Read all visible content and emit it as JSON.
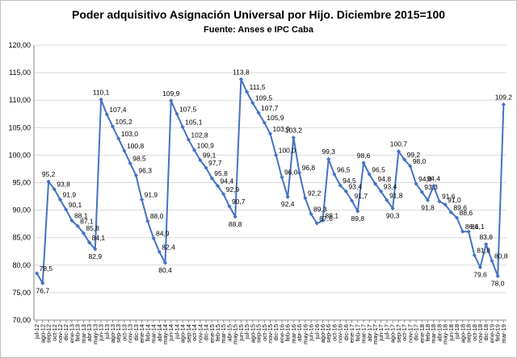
{
  "chart_data": {
    "type": "line",
    "title": "Poder adquisitivo Asignación Universal por Hijo. Diciembre 2015=100",
    "subtitle": "Fuente: Anses e IPC Caba",
    "xlabel": "",
    "ylabel": "",
    "ylim": [
      70,
      120
    ],
    "yticks": [
      "70,00",
      "75,00",
      "80,00",
      "85,00",
      "90,00",
      "95,00",
      "100,00",
      "105,00",
      "110,00",
      "115,00",
      "120,00"
    ],
    "grid": true,
    "legend": "none",
    "line_color": "#4472C4",
    "x": [
      "jul-12",
      "ago-12",
      "sep-12",
      "oct-12",
      "nov-12",
      "dic-12",
      "ene-13",
      "feb-13",
      "mar-13",
      "abr-13",
      "may-13",
      "jun-13",
      "jul-13",
      "ago-13",
      "sep-13",
      "oct-13",
      "nov-13",
      "dic-13",
      "ene-14",
      "feb-14",
      "mar-14",
      "abr-14",
      "may-14",
      "jun-14",
      "jul-14",
      "ago-14",
      "sep-14",
      "oct-14",
      "nov-14",
      "dic-14",
      "ene-15",
      "feb-15",
      "mar-15",
      "abr-15",
      "may-15",
      "jun-15",
      "jul-15",
      "ago-15",
      "sep-15",
      "oct-15",
      "nov-15",
      "dic-15",
      "ene-16",
      "feb-16",
      "mar-16",
      "abr-16",
      "may-16",
      "jun-16",
      "jul-16",
      "ago-16",
      "sep-16",
      "oct-16",
      "nov-16",
      "dic-16",
      "ene-17",
      "feb-17",
      "mar-17",
      "abr-17",
      "may-17",
      "jun-17",
      "jul-17",
      "ago-17",
      "sep-17",
      "oct-17",
      "nov-17",
      "dic-17",
      "ene-18",
      "feb-18",
      "mar-18",
      "abr-18",
      "may-18",
      "jun-18",
      "jul-18",
      "ago-18",
      "sep-18",
      "oct-18",
      "nov-18",
      "dic-18",
      "ene-19",
      "feb-19",
      "mar-19"
    ],
    "series": [
      {
        "name": "",
        "values": [
          78.5,
          76.7,
          95.2,
          93.8,
          91.9,
          90.1,
          88.1,
          87.1,
          85.8,
          84.1,
          82.9,
          110.1,
          107.4,
          105.2,
          103.0,
          100.8,
          98.5,
          96.3,
          91.9,
          88.0,
          84.9,
          82.4,
          80.4,
          109.9,
          107.5,
          105.1,
          102.8,
          100.9,
          99.1,
          97.7,
          95.8,
          94.4,
          92.9,
          90.7,
          88.8,
          113.8,
          111.5,
          109.5,
          107.7,
          105.9,
          103.9,
          100.0,
          96.0,
          92.4,
          103.2,
          96.8,
          92.2,
          89.3,
          87.6,
          88.1,
          99.3,
          96.5,
          94.5,
          93.4,
          91.7,
          89.8,
          98.6,
          96.5,
          94.8,
          93.4,
          91.8,
          90.3,
          100.7,
          99.2,
          98.0,
          94.8,
          93.3,
          91.8,
          94.4,
          91.6,
          91.0,
          89.6,
          88.6,
          86.1,
          86.1,
          81.8,
          79.6,
          83.8,
          80.8,
          78.0,
          109.2
        ]
      }
    ],
    "data_labels": [
      {
        "i": 0,
        "text": "78,5",
        "color": "#000000"
      },
      {
        "i": 1,
        "text": "76,7",
        "color": "#000000"
      },
      {
        "i": 2,
        "text": "95,2",
        "color": "#00A651"
      },
      {
        "i": 3,
        "text": "93,8",
        "color": "#000000"
      },
      {
        "i": 4,
        "text": "91,9",
        "color": "#000000"
      },
      {
        "i": 5,
        "text": "90,1",
        "color": "#000000"
      },
      {
        "i": 6,
        "text": "88,1",
        "color": "#000000"
      },
      {
        "i": 7,
        "text": "87,1",
        "color": "#000000"
      },
      {
        "i": 8,
        "text": "85,8",
        "color": "#000000"
      },
      {
        "i": 9,
        "text": "84,1",
        "color": "#000000"
      },
      {
        "i": 10,
        "text": "82,9",
        "color": "#000000"
      },
      {
        "i": 11,
        "text": "110,1",
        "color": "#00A651"
      },
      {
        "i": 12,
        "text": "107,4",
        "color": "#000000"
      },
      {
        "i": 13,
        "text": "105,2",
        "color": "#000000"
      },
      {
        "i": 14,
        "text": "103,0",
        "color": "#000000"
      },
      {
        "i": 15,
        "text": "100,8",
        "color": "#000000"
      },
      {
        "i": 16,
        "text": "98,5",
        "color": "#000000"
      },
      {
        "i": 17,
        "text": "96,3",
        "color": "#000000"
      },
      {
        "i": 18,
        "text": "91,9",
        "color": "#000000"
      },
      {
        "i": 19,
        "text": "88,0",
        "color": "#000000"
      },
      {
        "i": 20,
        "text": "84,9",
        "color": "#000000"
      },
      {
        "i": 21,
        "text": "82,4",
        "color": "#000000"
      },
      {
        "i": 22,
        "text": "80,4",
        "color": "#000000"
      },
      {
        "i": 23,
        "text": "109,9",
        "color": "#00A651"
      },
      {
        "i": 24,
        "text": "107,5",
        "color": "#000000"
      },
      {
        "i": 25,
        "text": "105,1",
        "color": "#000000"
      },
      {
        "i": 26,
        "text": "102,8",
        "color": "#000000"
      },
      {
        "i": 27,
        "text": "100,9",
        "color": "#000000"
      },
      {
        "i": 28,
        "text": "99,1",
        "color": "#000000"
      },
      {
        "i": 29,
        "text": "97,7",
        "color": "#000000"
      },
      {
        "i": 30,
        "text": "95,8",
        "color": "#000000"
      },
      {
        "i": 31,
        "text": "94,4",
        "color": "#000000"
      },
      {
        "i": 32,
        "text": "92,9",
        "color": "#000000"
      },
      {
        "i": 33,
        "text": "90,7",
        "color": "#000000"
      },
      {
        "i": 34,
        "text": "88,8",
        "color": "#000000"
      },
      {
        "i": 35,
        "text": "113,8",
        "color": "#00A651"
      },
      {
        "i": 36,
        "text": "111,5",
        "color": "#000000"
      },
      {
        "i": 37,
        "text": "109,5",
        "color": "#000000"
      },
      {
        "i": 38,
        "text": "107,7",
        "color": "#000000"
      },
      {
        "i": 39,
        "text": "105,9",
        "color": "#000000"
      },
      {
        "i": 40,
        "text": "103,9",
        "color": "#000000"
      },
      {
        "i": 41,
        "text": "100,0",
        "color": "#E02020"
      },
      {
        "i": 42,
        "text": "96,0",
        "color": "#000000"
      },
      {
        "i": 43,
        "text": "92,4",
        "color": "#000000"
      },
      {
        "i": 44,
        "text": "103,2",
        "color": "#00A651"
      },
      {
        "i": 45,
        "text": "96,8",
        "color": "#000000"
      },
      {
        "i": 46,
        "text": "92,2",
        "color": "#000000"
      },
      {
        "i": 47,
        "text": "89,3",
        "color": "#000000"
      },
      {
        "i": 48,
        "text": "87,6",
        "color": "#000000"
      },
      {
        "i": 49,
        "text": "88,1",
        "color": "#000000"
      },
      {
        "i": 50,
        "text": "99,3",
        "color": "#00A651"
      },
      {
        "i": 51,
        "text": "96,5",
        "color": "#000000"
      },
      {
        "i": 52,
        "text": "94,5",
        "color": "#000000"
      },
      {
        "i": 53,
        "text": "93,4",
        "color": "#000000"
      },
      {
        "i": 54,
        "text": "91,7",
        "color": "#000000"
      },
      {
        "i": 55,
        "text": "89,8",
        "color": "#000000"
      },
      {
        "i": 56,
        "text": "98,6",
        "color": "#00A651"
      },
      {
        "i": 57,
        "text": "96,5",
        "color": "#000000"
      },
      {
        "i": 58,
        "text": "94,8",
        "color": "#000000"
      },
      {
        "i": 59,
        "text": "93,4",
        "color": "#000000"
      },
      {
        "i": 60,
        "text": "91,8",
        "color": "#000000"
      },
      {
        "i": 61,
        "text": "90,3",
        "color": "#000000"
      },
      {
        "i": 62,
        "text": "100,7",
        "color": "#00A651"
      },
      {
        "i": 63,
        "text": "99,2",
        "color": "#000000"
      },
      {
        "i": 64,
        "text": "98,0",
        "color": "#000000"
      },
      {
        "i": 65,
        "text": "94,8",
        "color": "#000000"
      },
      {
        "i": 66,
        "text": "93,3",
        "color": "#000000"
      },
      {
        "i": 67,
        "text": "91,8",
        "color": "#000000"
      },
      {
        "i": 68,
        "text": "94,4",
        "color": "#8B1A1A"
      },
      {
        "i": 69,
        "text": "91,6",
        "color": "#000000"
      },
      {
        "i": 70,
        "text": "91,0",
        "color": "#8B1A1A"
      },
      {
        "i": 71,
        "text": "89,6",
        "color": "#000000"
      },
      {
        "i": 72,
        "text": "88,6",
        "color": "#000000"
      },
      {
        "i": 73,
        "text": "86,1",
        "color": "#000000"
      },
      {
        "i": 74,
        "text": "86,1",
        "color": "#8B1A1A"
      },
      {
        "i": 75,
        "text": "81,8",
        "color": "#000000"
      },
      {
        "i": 76,
        "text": "79,6",
        "color": "#000000"
      },
      {
        "i": 77,
        "text": "83,8",
        "color": "#8B1A1A"
      },
      {
        "i": 78,
        "text": "80,8",
        "color": "#000000"
      },
      {
        "i": 79,
        "text": "78,0",
        "color": "#000000"
      },
      {
        "i": 80,
        "text": "109,2",
        "color": "#8B1A1A"
      }
    ]
  }
}
